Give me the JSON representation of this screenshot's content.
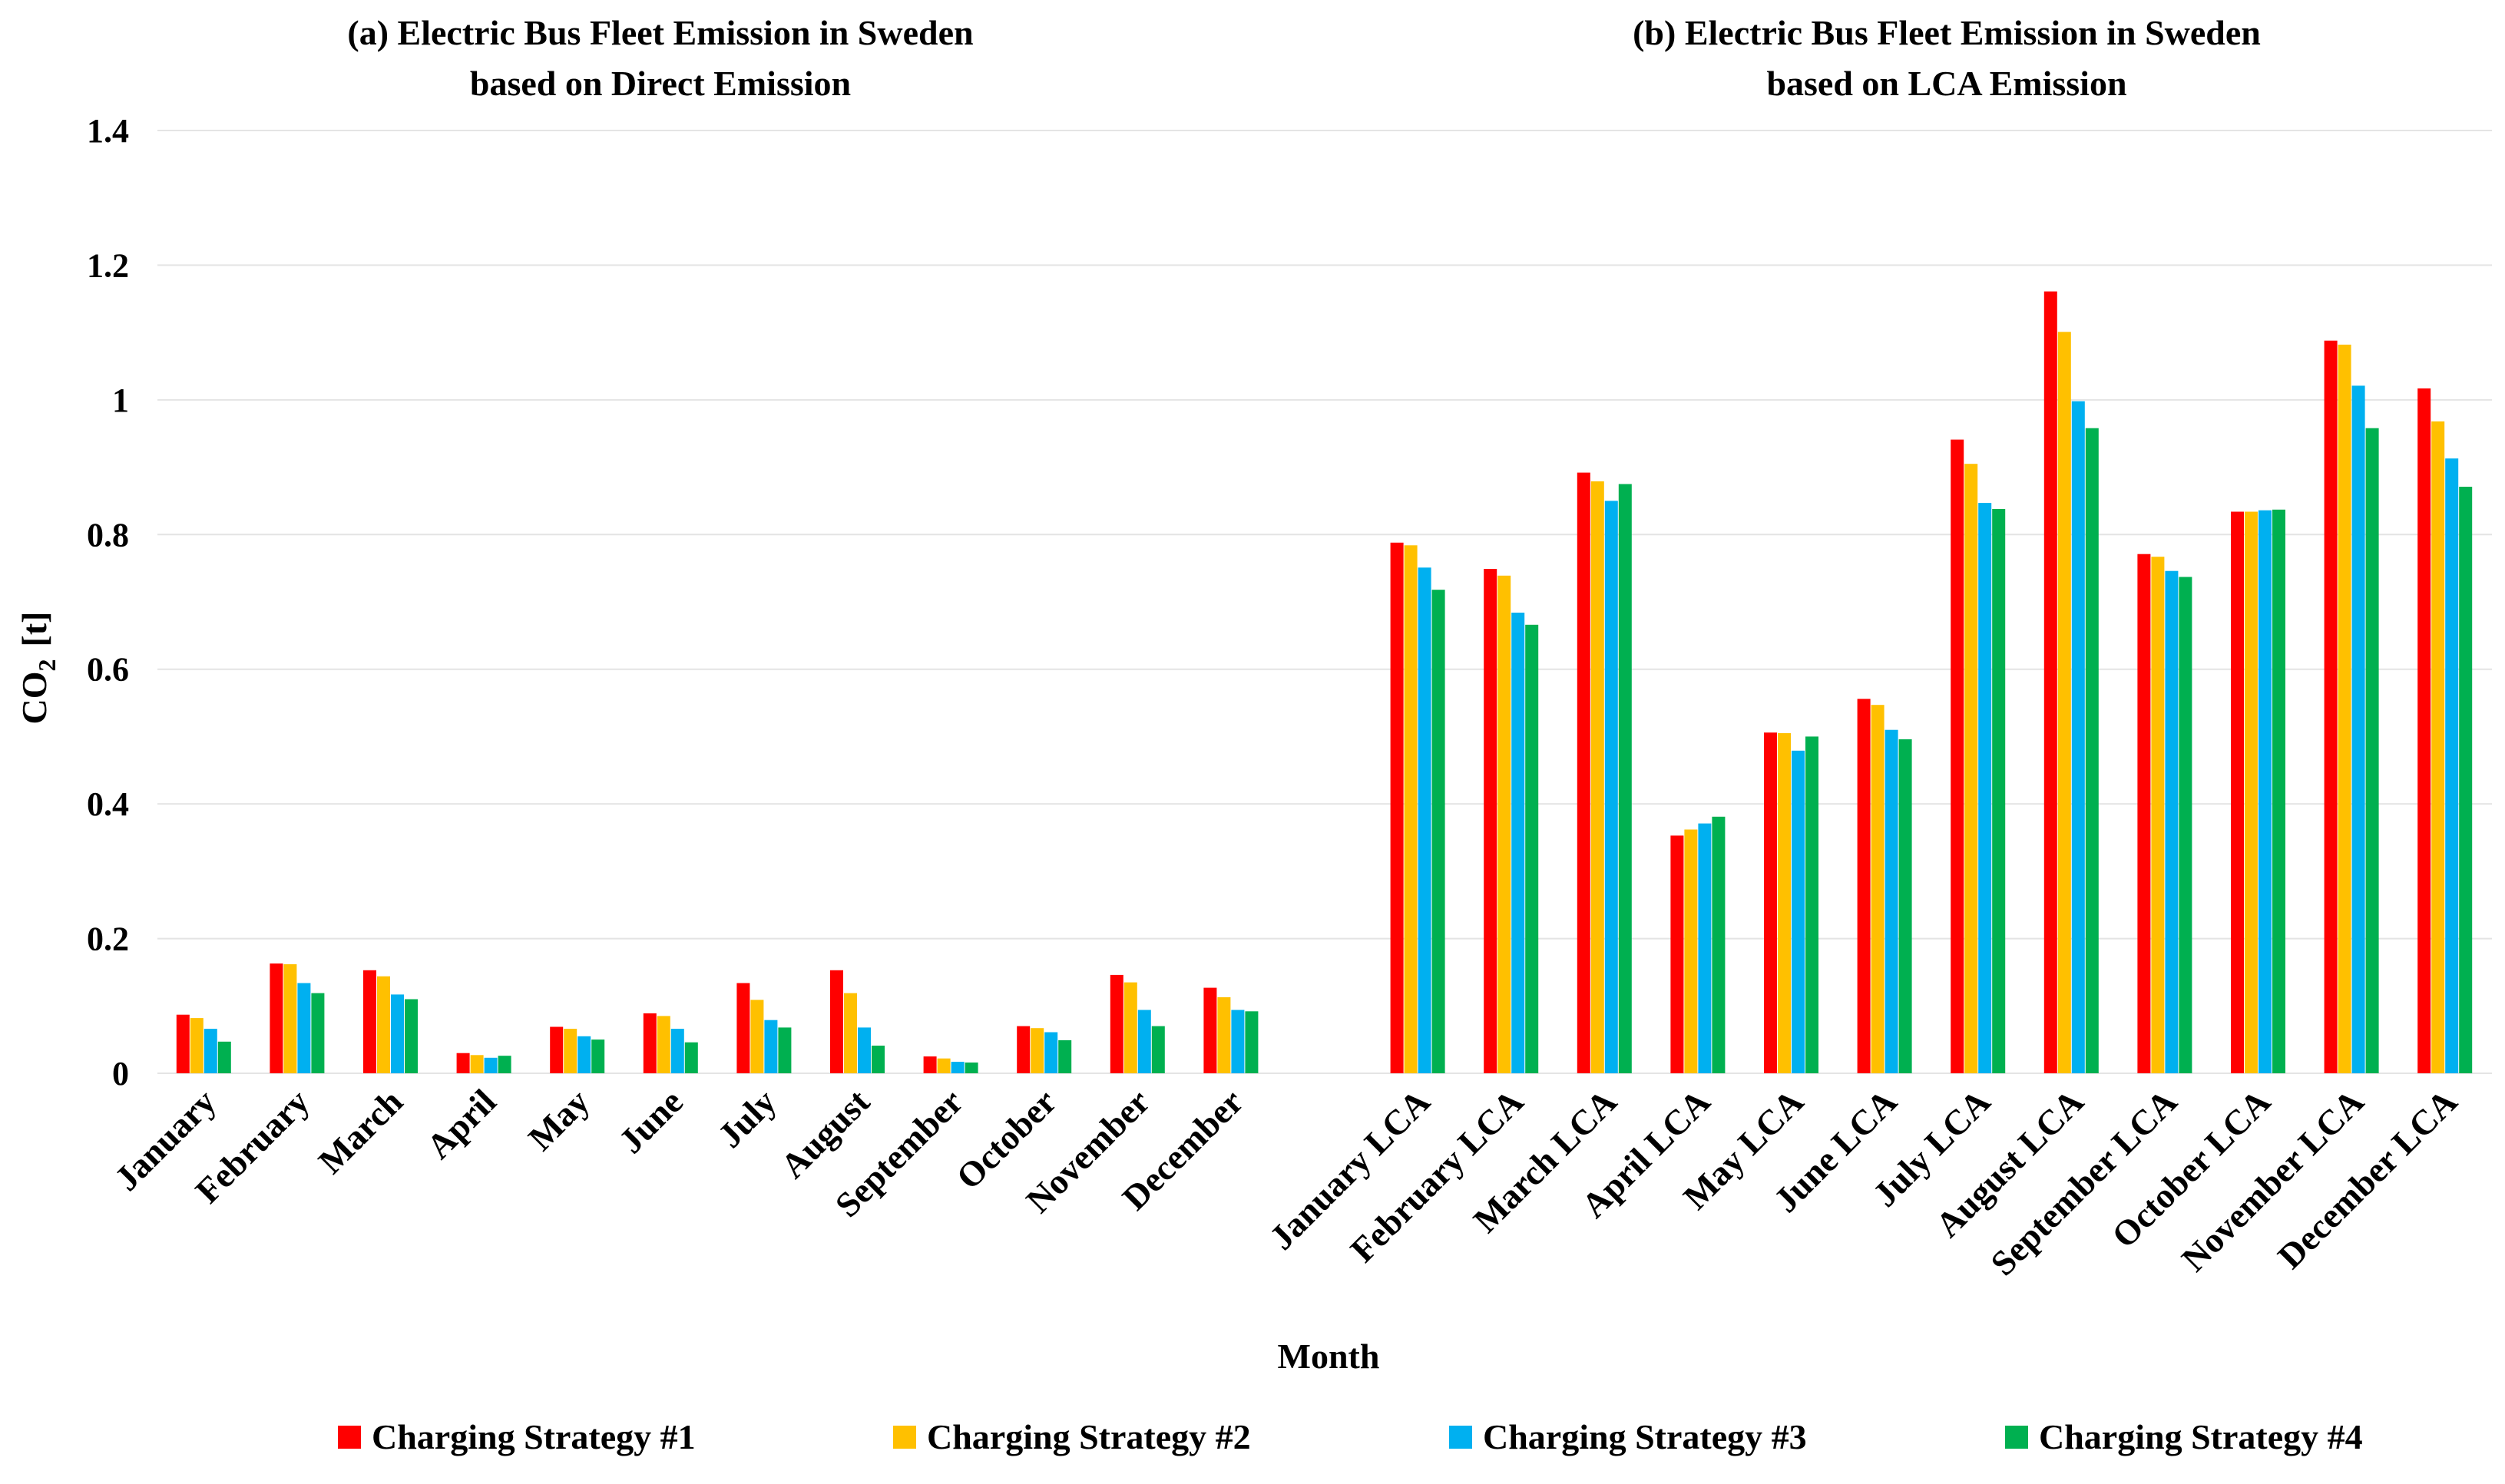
{
  "titles": {
    "a_line1": "(a)  Electric Bus Fleet Emission in Sweden",
    "a_line2": "based on Direct Emission",
    "b_line1": "(b)  Electric Bus Fleet Emission in Sweden",
    "b_line2": "based on LCA Emission"
  },
  "colors": {
    "s1": "#ff0000",
    "s2": "#ffc000",
    "s3": "#00b0f0",
    "s4": "#00b050",
    "grid": "#e4e4e4",
    "text": "#000000"
  },
  "legend": [
    {
      "label": "Charging Strategy #1",
      "color": "#ff0000"
    },
    {
      "label": "Charging Strategy #2",
      "color": "#ffc000"
    },
    {
      "label": "Charging Strategy #3",
      "color": "#00b0f0"
    },
    {
      "label": "Charging Strategy #4",
      "color": "#00b050"
    }
  ],
  "chart_data": {
    "type": "bar",
    "xlabel": "Month",
    "ylabel_main": "CO",
    "ylabel_sub": "2",
    "ylabel_unit": "[t]",
    "ylim": [
      0,
      1.4
    ],
    "yticks": [
      0,
      0.2,
      0.4,
      0.6,
      0.8,
      1,
      1.2,
      1.4
    ],
    "ytick_labels": [
      "0",
      "0.2",
      "0.4",
      "0.6",
      "0.8",
      "1",
      "1.2",
      "1.4"
    ],
    "grid": true,
    "legend_position": "bottom",
    "categories": [
      "January",
      "February",
      "March",
      "April",
      "May",
      "June",
      "July",
      "August",
      "September",
      "October",
      "November",
      "December",
      "",
      "January LCA",
      "February LCA",
      "March LCA",
      "April LCA",
      "May LCA",
      "June LCA",
      "July LCA",
      "August LCA",
      "September LCA",
      "October LCA",
      "November LCA",
      "December LCA"
    ],
    "series": [
      {
        "name": "Charging Strategy #1",
        "values": [
          0.087,
          0.163,
          0.153,
          0.03,
          0.069,
          0.089,
          0.134,
          0.153,
          0.025,
          0.07,
          0.146,
          0.127,
          null,
          0.788,
          0.749,
          0.892,
          0.353,
          0.506,
          0.556,
          0.941,
          1.161,
          0.771,
          0.834,
          1.088,
          1.017
        ]
      },
      {
        "name": "Charging Strategy #2",
        "values": [
          0.082,
          0.162,
          0.144,
          0.027,
          0.066,
          0.085,
          0.109,
          0.119,
          0.022,
          0.067,
          0.135,
          0.113,
          null,
          0.784,
          0.739,
          0.879,
          0.362,
          0.505,
          0.547,
          0.905,
          1.101,
          0.767,
          0.834,
          1.082,
          0.968
        ]
      },
      {
        "name": "Charging Strategy #3",
        "values": [
          0.066,
          0.134,
          0.117,
          0.023,
          0.055,
          0.066,
          0.079,
          0.068,
          0.017,
          0.061,
          0.094,
          0.094,
          null,
          0.751,
          0.684,
          0.85,
          0.371,
          0.479,
          0.51,
          0.847,
          0.998,
          0.746,
          0.836,
          1.021,
          0.913
        ]
      },
      {
        "name": "Charging Strategy #4",
        "values": [
          0.047,
          0.119,
          0.11,
          0.026,
          0.05,
          0.046,
          0.068,
          0.041,
          0.016,
          0.049,
          0.07,
          0.092,
          null,
          0.718,
          0.666,
          0.875,
          0.381,
          0.5,
          0.496,
          0.838,
          0.958,
          0.737,
          0.837,
          0.958,
          0.871
        ]
      }
    ]
  }
}
